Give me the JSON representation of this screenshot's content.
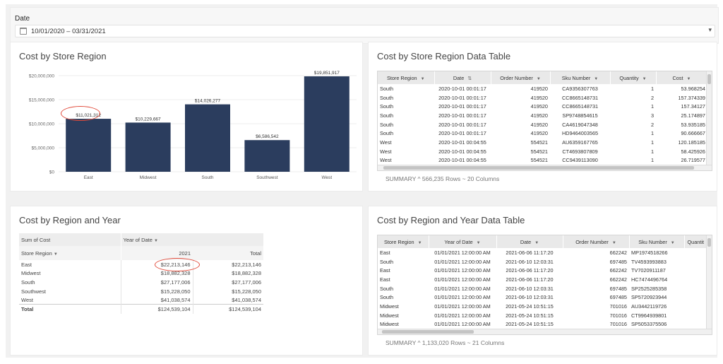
{
  "date_filter": {
    "label": "Date",
    "value": "10/01/2020 – 03/31/2021"
  },
  "panels": {
    "cost_by_store_region": {
      "title": "Cost by Store Region"
    },
    "cost_by_store_region_table": {
      "title": "Cost by Store Region Data Table"
    },
    "cost_by_region_year": {
      "title": "Cost by Region and Year"
    },
    "cost_by_region_year_table": {
      "title": "Cost by Region and Year Data Table"
    }
  },
  "chart_data": {
    "type": "bar",
    "categories": [
      "East",
      "Midwest",
      "South",
      "Southwest",
      "West"
    ],
    "values": [
      11021312,
      10229667,
      14026277,
      6586542,
      19851917
    ],
    "value_labels": [
      "$11,021,312",
      "$10,229,667",
      "$14,026,277",
      "$6,586,542",
      "$19,851,917"
    ],
    "y_ticks": [
      0,
      5000000,
      10000000,
      15000000,
      20000000
    ],
    "y_tick_labels": [
      "$0",
      "$5,000,000",
      "$10,000,000",
      "$15,000,000",
      "$20,000,000"
    ],
    "ylim": [
      0,
      20000000
    ],
    "grid": true,
    "colors": {
      "bar": "#2b3d5e",
      "highlight": "#e14b3b"
    },
    "highlighted_category": "East"
  },
  "store_table": {
    "columns": [
      "Store Region",
      "Date",
      "Order Number",
      "Sku Number",
      "Quantity",
      "Cost"
    ],
    "rows": [
      [
        "South",
        "2020-10-01 00:01:17",
        "419520",
        "CA9356307763",
        "1",
        "53.968254"
      ],
      [
        "South",
        "2020-10-01 00:01:17",
        "419520",
        "CC8665148731",
        "2",
        "157.374339"
      ],
      [
        "South",
        "2020-10-01 00:01:17",
        "419520",
        "CC8665148731",
        "1",
        "157.34127"
      ],
      [
        "South",
        "2020-10-01 00:01:17",
        "419520",
        "SP9748854615",
        "3",
        "25.174897"
      ],
      [
        "South",
        "2020-10-01 00:01:17",
        "419520",
        "CA4619047348",
        "2",
        "53.935185"
      ],
      [
        "South",
        "2020-10-01 00:01:17",
        "419520",
        "HD9464003565",
        "1",
        "90.666667"
      ],
      [
        "West",
        "2020-10-01 00:04:55",
        "554521",
        "AU6359167765",
        "1",
        "120.185185"
      ],
      [
        "West",
        "2020-10-01 00:04:55",
        "554521",
        "CT4693807809",
        "1",
        "58.425926"
      ],
      [
        "West",
        "2020-10-01 00:04:55",
        "554521",
        "CC9439113090",
        "1",
        "26.719577"
      ]
    ],
    "summary_label": "SUMMARY",
    "summary_text": "566,235 Rows ~ 20 Columns"
  },
  "pivot": {
    "corner": "Sum of Cost",
    "col_field": "Year of Date",
    "row_field": "Store Region",
    "year_col": "2021",
    "total_col": "Total",
    "rows": [
      {
        "region": "East",
        "y2021": "$22,213,146",
        "total": "$22,213,146"
      },
      {
        "region": "Midwest",
        "y2021": "$18,882,328",
        "total": "$18,882,328"
      },
      {
        "region": "South",
        "y2021": "$27,177,006",
        "total": "$27,177,006"
      },
      {
        "region": "Southwest",
        "y2021": "$15,228,050",
        "total": "$15,228,050"
      },
      {
        "region": "West",
        "y2021": "$41,038,574",
        "total": "$41,038,574"
      },
      {
        "region": "Total",
        "y2021": "$124,539,104",
        "total": "$124,539,104"
      }
    ]
  },
  "year_table": {
    "columns": [
      "Store Region",
      "Year of Date",
      "Date",
      "Order Number",
      "Sku Number",
      "Quantit"
    ],
    "rows": [
      [
        "East",
        "01/01/2021 12:00:00 AM",
        "2021-06-06 11:17:20",
        "662242",
        "MP1974518266"
      ],
      [
        "South",
        "01/01/2021 12:00:00 AM",
        "2021-06-10 12:03:31",
        "697485",
        "TV4593993883"
      ],
      [
        "East",
        "01/01/2021 12:00:00 AM",
        "2021-06-06 11:17:20",
        "662242",
        "TV7020911187"
      ],
      [
        "East",
        "01/01/2021 12:00:00 AM",
        "2021-06-06 11:17:20",
        "662242",
        "HC7474496764"
      ],
      [
        "South",
        "01/01/2021 12:00:00 AM",
        "2021-06-10 12:03:31",
        "697485",
        "SP2525285358"
      ],
      [
        "South",
        "01/01/2021 12:00:00 AM",
        "2021-06-10 12:03:31",
        "697485",
        "SP5720923944"
      ],
      [
        "Midwest",
        "01/01/2021 12:00:00 AM",
        "2021-05-24 10:51:15",
        "701016",
        "AU3442119726"
      ],
      [
        "Midwest",
        "01/01/2021 12:00:00 AM",
        "2021-05-24 10:51:15",
        "701016",
        "CT9964939801"
      ],
      [
        "Midwest",
        "01/01/2021 12:00:00 AM",
        "2021-05-24 10:51:15",
        "701016",
        "SP5053375506"
      ]
    ],
    "summary_label": "SUMMARY",
    "summary_text": "1,133,020 Rows ~ 21 Columns"
  }
}
